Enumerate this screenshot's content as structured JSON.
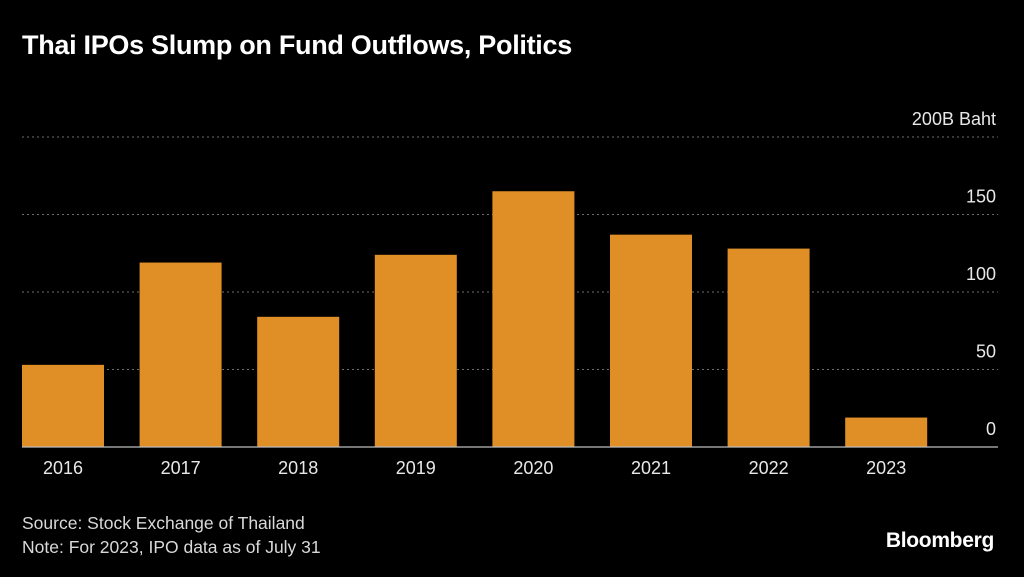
{
  "header": {
    "title": "Thai IPOs Slump on Fund Outflows, Politics"
  },
  "chart_data": {
    "type": "bar",
    "title": "Thai IPOs Slump on Fund Outflows, Politics",
    "categories": [
      "2016",
      "2017",
      "2018",
      "2019",
      "2020",
      "2021",
      "2022",
      "2023"
    ],
    "values": [
      53,
      119,
      84,
      124,
      165,
      137,
      128,
      19
    ],
    "ylim": [
      0,
      200
    ],
    "yticks": [
      0,
      50,
      100,
      150,
      200
    ],
    "ytick_labels": [
      "0",
      "50",
      "100",
      "150",
      "200B Baht"
    ],
    "xlabel": "",
    "ylabel": "Baht",
    "grid": true,
    "bar_color": "#e08f27",
    "grid_color": "#6e6e6e"
  },
  "footer": {
    "source": "Source: Stock Exchange of Thailand",
    "note": "Note: For 2023, IPO data as of July 31",
    "brand": "Bloomberg"
  }
}
